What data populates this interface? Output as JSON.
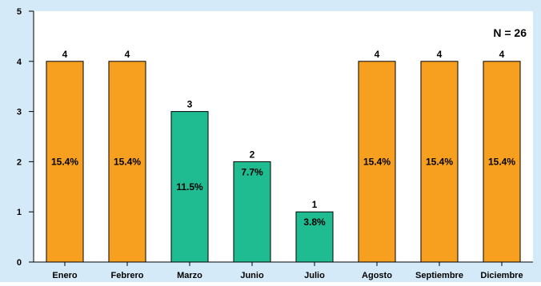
{
  "chart_data": {
    "type": "bar",
    "categories": [
      "Enero",
      "Febrero",
      "Marzo",
      "Junio",
      "Julio",
      "Agosto",
      "Septiembre",
      "Diciembre"
    ],
    "values": [
      4,
      4,
      3,
      2,
      1,
      4,
      4,
      4
    ],
    "percent_labels": [
      "15.4%",
      "15.4%",
      "11.5%",
      "7.7%",
      "3.8%",
      "15.4%",
      "15.4%",
      "15.4%"
    ],
    "bar_colors": [
      "#f7a020",
      "#f7a020",
      "#1fbb91",
      "#1fbb91",
      "#1fbb91",
      "#f7a020",
      "#f7a020",
      "#f7a020"
    ],
    "yticks": [
      "0",
      "1",
      "2",
      "3",
      "4",
      "5"
    ],
    "ylim": [
      0,
      5
    ],
    "annotation": "N = 26",
    "title": "",
    "xlabel": "",
    "ylabel": "",
    "grid": false,
    "background_color": "#d5eaf8",
    "axis_color": "#000000"
  }
}
